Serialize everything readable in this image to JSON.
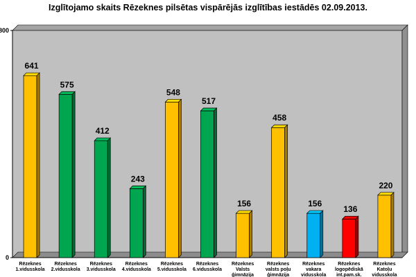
{
  "chart_data": {
    "type": "bar",
    "title": "Izglītojamo skaits Rēzeknes pilsētas vispārējās izglītības iestādēs 02.09.2013.",
    "xlabel": "",
    "ylabel": "",
    "ylim": [
      0,
      800
    ],
    "yticks": [
      0,
      800
    ],
    "grid": false,
    "legend": "none",
    "categories": [
      [
        "Rēzeknes",
        "1.vidusskola"
      ],
      [
        "Rēzeknes",
        "2.vidusskola"
      ],
      [
        "Rēzeknes",
        "3.vidusskola"
      ],
      [
        "Rēzeknes",
        "4.vidusskola"
      ],
      [
        "Rēzeknes",
        "5.vidusskola"
      ],
      [
        "Rēzeknes",
        "6.vidusskola"
      ],
      [
        "Rēzeknes",
        "Valsts",
        "ģimnāzija"
      ],
      [
        "Rēzeknes",
        "valsts poļu",
        "ģimnāzija"
      ],
      [
        "Rēzeknes",
        "vakara",
        "vidusskola"
      ],
      [
        "Rēzeknes",
        "logopēdiskā",
        "int.pam.sk."
      ],
      [
        "Rēzeknes",
        "Katoļu",
        "vidusskola"
      ]
    ],
    "values": [
      641,
      575,
      412,
      243,
      548,
      517,
      156,
      458,
      156,
      136,
      220
    ],
    "colors": [
      "#FFC000",
      "#00A550",
      "#00A550",
      "#00A550",
      "#FFC000",
      "#00A550",
      "#FFC000",
      "#FFC000",
      "#00B0F0",
      "#FF0000",
      "#FFC000"
    ],
    "plot_background": "#c0c0c0"
  }
}
